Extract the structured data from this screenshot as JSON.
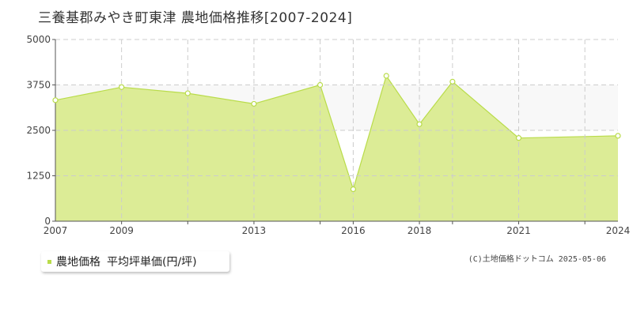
{
  "page": {
    "title": "三養基郡みやき町東津 農地価格推移[2007-2024]",
    "credit": "(C)土地価格ドットコム 2025-05-06"
  },
  "legend": {
    "series_label": "農地価格",
    "unit_label": "平均坪単価(円/坪)"
  },
  "colors": {
    "area_fill": "#dcec96",
    "area_line": "#b9dc4a",
    "band": "#f8f8f8",
    "grid": "#cccccc",
    "axis": "#555555"
  },
  "chart_data": {
    "type": "area",
    "title": "",
    "xlabel": "",
    "ylabel": "",
    "x_range": [
      2007,
      2024
    ],
    "ylim": [
      0,
      5000
    ],
    "y_ticks": [
      0,
      1250,
      2500,
      3750,
      5000
    ],
    "x_ticks": [
      2007,
      2009,
      2013,
      2016,
      2018,
      2021,
      2024
    ],
    "x_gridlines": [
      2009,
      2011,
      2013,
      2015,
      2016,
      2018,
      2019,
      2021,
      2023
    ],
    "shaded_band": [
      2500,
      3750
    ],
    "grid": true,
    "legend_position": "bottom-left",
    "series": [
      {
        "name": "農地価格",
        "x": [
          2007,
          2009,
          2011,
          2013,
          2015,
          2016,
          2017,
          2018,
          2019,
          2021,
          2024
        ],
        "values": [
          3330,
          3690,
          3520,
          3230,
          3750,
          880,
          4000,
          2670,
          3840,
          2290,
          2350
        ]
      }
    ]
  }
}
